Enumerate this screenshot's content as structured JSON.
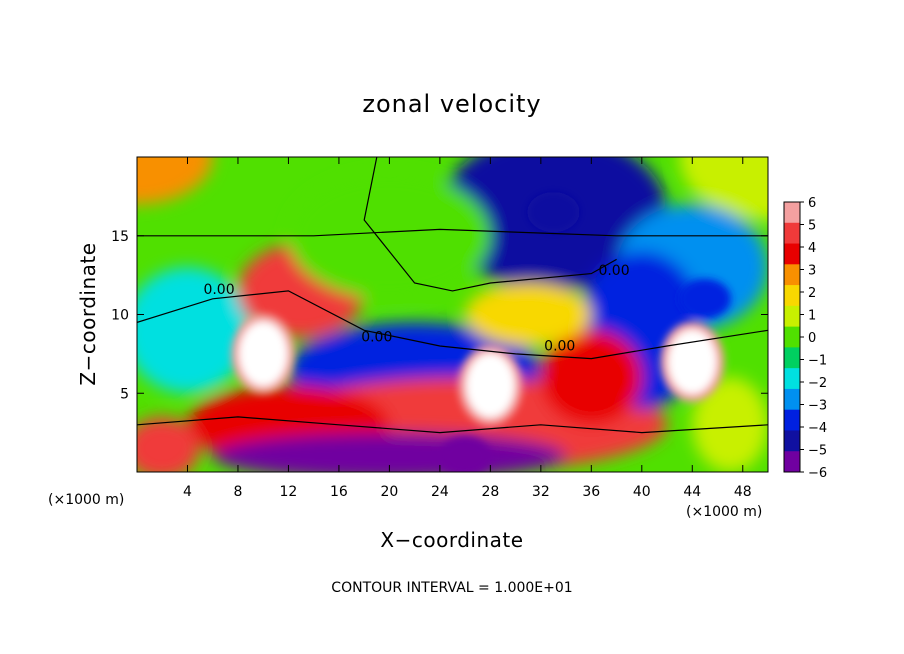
{
  "chart_data": {
    "type": "heatmap",
    "title": "zonal velocity",
    "xlabel": "X−coordinate",
    "ylabel": "Z−coordinate",
    "x_unit_label": "(×1000 m)",
    "x_unit_label_right": "(×1000 m)",
    "xlim": [
      0,
      50
    ],
    "ylim": [
      0,
      20
    ],
    "x_ticks": [
      4,
      8,
      12,
      16,
      20,
      24,
      28,
      32,
      36,
      40,
      44,
      48
    ],
    "x_tick_labels": [
      "4",
      "8",
      "12",
      "16",
      "20",
      "24",
      "28",
      "32",
      "36",
      "40",
      "44",
      "48"
    ],
    "y_ticks": [
      5,
      10,
      15
    ],
    "y_tick_labels": [
      "5",
      "10",
      "15"
    ],
    "colorbar": {
      "min": -6,
      "max": 6,
      "levels": [
        6,
        5,
        4,
        3,
        2,
        1,
        0,
        -1,
        -2,
        -3,
        -4,
        -5,
        -6
      ],
      "labels": [
        "6",
        "5",
        "4",
        "3",
        "2",
        "1",
        "0",
        "−1",
        "−2",
        "−3",
        "−4",
        "−5",
        "−6"
      ],
      "colors": [
        "#f4a0a0",
        "#f03a3a",
        "#e80000",
        "#f89000",
        "#f8d800",
        "#c8f000",
        "#50e000",
        "#00d060",
        "#00e0e0",
        "#0090f0",
        "#0020e0",
        "#1010a0",
        "#7000a0"
      ]
    },
    "contour_labels": [
      {
        "text": "0.00",
        "x": 6.5,
        "y": 11.3
      },
      {
        "text": "0.00",
        "x": 19,
        "y": 8.3
      },
      {
        "text": "0.00",
        "x": 33.5,
        "y": 7.7
      },
      {
        "text": "0.00",
        "x": 37.8,
        "y": 12.5
      }
    ],
    "features": [
      {
        "kind": "max",
        "x": 10,
        "y": 7.5,
        "value": 6
      },
      {
        "kind": "max",
        "x": 44,
        "y": 7.0,
        "value": 6
      },
      {
        "kind": "max",
        "x": 28,
        "y": 5.5,
        "value": 6
      },
      {
        "kind": "min",
        "x": 33,
        "y": 16.5,
        "value": -5
      },
      {
        "kind": "min",
        "x": 45,
        "y": 11,
        "value": -4
      },
      {
        "kind": "min",
        "x": 26,
        "y": 1.0,
        "value": -6
      }
    ],
    "annotation": "CONTOUR INTERVAL = 1.000E+01"
  }
}
